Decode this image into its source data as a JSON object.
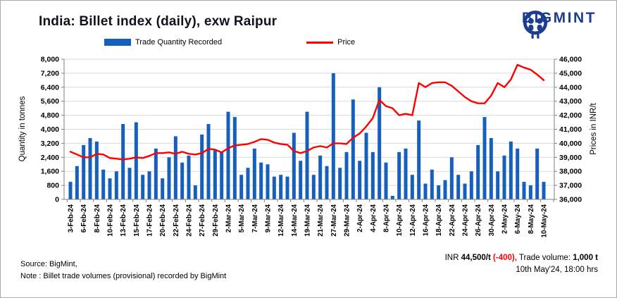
{
  "header": {
    "title": "India: Billet index (daily), exw Raipur",
    "brand": "BIGMINT"
  },
  "legend": {
    "items": [
      {
        "label": "Trade Quantity Recorded",
        "type": "bar"
      },
      {
        "label": "Price",
        "type": "line"
      }
    ]
  },
  "colors": {
    "bar": "#1560BD",
    "line": "#FF0000",
    "brand": "#1D3D91",
    "gridline": "#D9D9D9",
    "axis": "#808080",
    "change_negative": "#FF0000"
  },
  "chart_data": {
    "type": "bar+line",
    "title": "India: Billet index (daily), exw Raipur",
    "grid": "horizontal",
    "legend_position": "top",
    "x_label_every_n_bars": 2,
    "x_labels": [
      "3-Feb-24",
      "6-Feb-24",
      "8-Feb-24",
      "10-Feb-24",
      "13-Feb-24",
      "15-Feb-24",
      "17-Feb-24",
      "20-Feb-24",
      "22-Feb-24",
      "24-Feb-24",
      "27-Feb-24",
      "29-Feb-24",
      "2-Mar-24",
      "5-Mar-24",
      "7-Mar-24",
      "9-Mar-24",
      "12-Mar-24",
      "14-Mar-24",
      "19-Mar-24",
      "21-Mar-24",
      "27-Mar-24",
      "29-Mar-24",
      "2-Apr-24",
      "4-Apr-24",
      "8-Apr-24",
      "10-Apr-24",
      "12-Apr-24",
      "16-Apr-24",
      "18-Apr-24",
      "22-Apr-24",
      "24-Apr-24",
      "26-Apr-24",
      "30-Apr-24",
      "2-May-24",
      "6-May-24",
      "8-May-24",
      "10-May-24"
    ],
    "left_axis": {
      "title": "Quantity in tonnes",
      "min": 0,
      "max": 8000,
      "step": 800,
      "tick_labels": [
        "0",
        "800",
        "1,600",
        "2,400",
        "3,200",
        "4,000",
        "4,800",
        "5,600",
        "6,400",
        "7,200",
        "8,000"
      ]
    },
    "right_axis": {
      "title": "Prices in INR/t",
      "min": 36000,
      "max": 46000,
      "step": 1000,
      "tick_labels": [
        "36,000",
        "37,000",
        "38,000",
        "39,000",
        "40,000",
        "41,000",
        "42,000",
        "43,000",
        "44,000",
        "45,000",
        "46,000"
      ]
    },
    "series": [
      {
        "name": "Trade Quantity Recorded",
        "type": "bar",
        "axis": "left",
        "color": "#1560BD",
        "values": [
          1000,
          1900,
          3100,
          3500,
          3300,
          1700,
          1200,
          1600,
          4300,
          1800,
          4400,
          1400,
          1600,
          2900,
          1200,
          2400,
          3600,
          2100,
          2500,
          800,
          3700,
          4300,
          2800,
          2700,
          5000,
          4700,
          1400,
          1800,
          2900,
          2100,
          2000,
          1300,
          1400,
          1300,
          3800,
          2200,
          5000,
          1400,
          2500,
          1900,
          7200,
          1800,
          2700,
          5700,
          2200,
          3800,
          2700,
          6400,
          2100,
          200,
          2700,
          2900,
          1400,
          4500,
          900,
          1700,
          800,
          1100,
          2400,
          1400,
          900,
          1600,
          3100,
          4700,
          3500,
          1600,
          2500,
          3300,
          2900,
          1000,
          800,
          2900,
          1000
        ]
      },
      {
        "name": "Price",
        "type": "line",
        "axis": "right",
        "color": "#FF0000",
        "values": [
          39400,
          39200,
          39000,
          39000,
          39250,
          39200,
          38950,
          38900,
          38850,
          38900,
          39000,
          38950,
          39100,
          39300,
          39300,
          39350,
          39250,
          39400,
          39250,
          39200,
          39300,
          39600,
          39550,
          39350,
          39650,
          39850,
          39900,
          39950,
          40100,
          40300,
          40250,
          40050,
          39950,
          39900,
          39450,
          39300,
          39450,
          39700,
          39800,
          39700,
          40000,
          40000,
          39950,
          40400,
          40700,
          41200,
          41800,
          43100,
          42650,
          42500,
          42000,
          42100,
          42000,
          44300,
          44000,
          44300,
          44350,
          44350,
          44100,
          43700,
          43300,
          43000,
          42850,
          42850,
          43400,
          44300,
          44000,
          44550,
          45600,
          45400,
          45250,
          44900,
          44500
        ]
      }
    ]
  },
  "footer": {
    "source_line": "Source: BigMint,",
    "note_line": "Note : Billet trade volumes (provisional) recorded by BigMint",
    "price_prefix": "INR",
    "price": "44,500/t",
    "price_change": "(-400),",
    "volume_label": "Trade volume:",
    "volume": "1,000 t",
    "timestamp": "10th May'24, 18:00 hrs"
  }
}
